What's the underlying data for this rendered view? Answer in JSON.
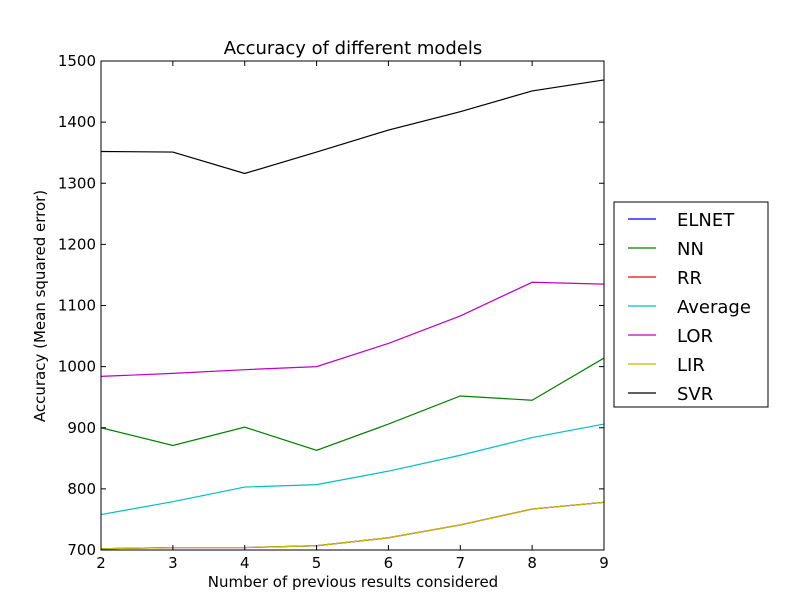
{
  "chart_data": {
    "type": "line",
    "title": "Accuracy of different models",
    "xlabel": "Number of previous results considered",
    "ylabel": "Accuracy (Mean squared error)",
    "x": [
      2,
      3,
      4,
      5,
      6,
      7,
      8,
      9
    ],
    "xlim": [
      2,
      9
    ],
    "ylim": [
      700,
      1500
    ],
    "xticks": [
      "2",
      "3",
      "4",
      "5",
      "6",
      "7",
      "8",
      "9"
    ],
    "yticks": [
      "700",
      "800",
      "900",
      "1000",
      "1100",
      "1200",
      "1300",
      "1400",
      "1500"
    ],
    "grid": false,
    "legend_position": "right, outside plot",
    "series": [
      {
        "name": "ELNET",
        "color": "#0000ff",
        "values": [
          702,
          704,
          704,
          707,
          720,
          741,
          767,
          778
        ]
      },
      {
        "name": "NN",
        "color": "#008000",
        "values": [
          900,
          871,
          901,
          863,
          906,
          952,
          945,
          1014
        ]
      },
      {
        "name": "RR",
        "color": "#ff0000",
        "values": [
          702,
          704,
          704,
          707,
          720,
          741,
          767,
          778
        ]
      },
      {
        "name": "Average",
        "color": "#00bfbf",
        "values": [
          758,
          779,
          803,
          807,
          829,
          855,
          884,
          906
        ]
      },
      {
        "name": "LOR",
        "color": "#bf00bf",
        "values": [
          984,
          989,
          995,
          1000,
          1038,
          1083,
          1138,
          1135
        ]
      },
      {
        "name": "LIR",
        "color": "#bfbf00",
        "values": [
          702,
          704,
          704,
          707,
          720,
          741,
          767,
          778
        ]
      },
      {
        "name": "SVR",
        "color": "#000000",
        "values": [
          1352,
          1351,
          1316,
          1351,
          1387,
          1417,
          1451,
          1469
        ]
      }
    ]
  }
}
